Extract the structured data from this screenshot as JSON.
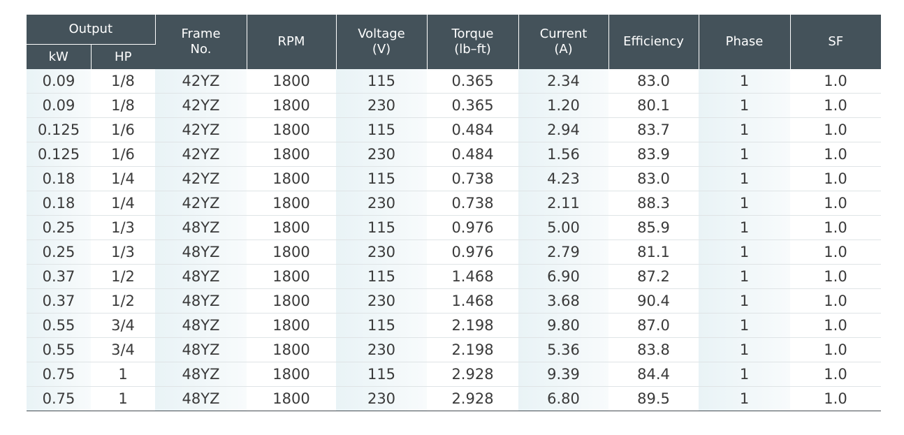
{
  "header": {
    "output": "Output",
    "kw": "kW",
    "hp": "HP",
    "frame": [
      "Frame",
      "No."
    ],
    "rpm": "RPM",
    "voltage": [
      "Voltage",
      "(V)"
    ],
    "torque": [
      "Torque",
      "(lb–ft)"
    ],
    "current": [
      "Current",
      "(A)"
    ],
    "efficiency": "Efficiency",
    "phase": "Phase",
    "sf": "SF"
  },
  "rows": [
    [
      "0.09",
      "1/8",
      "42YZ",
      "1800",
      "115",
      "0.365",
      "2.34",
      "83.0",
      "1",
      "1.0"
    ],
    [
      "0.09",
      "1/8",
      "42YZ",
      "1800",
      "230",
      "0.365",
      "1.20",
      "80.1",
      "1",
      "1.0"
    ],
    [
      "0.125",
      "1/6",
      "42YZ",
      "1800",
      "115",
      "0.484",
      "2.94",
      "83.7",
      "1",
      "1.0"
    ],
    [
      "0.125",
      "1/6",
      "42YZ",
      "1800",
      "230",
      "0.484",
      "1.56",
      "83.9",
      "1",
      "1.0"
    ],
    [
      "0.18",
      "1/4",
      "42YZ",
      "1800",
      "115",
      "0.738",
      "4.23",
      "83.0",
      "1",
      "1.0"
    ],
    [
      "0.18",
      "1/4",
      "42YZ",
      "1800",
      "230",
      "0.738",
      "2.11",
      "88.3",
      "1",
      "1.0"
    ],
    [
      "0.25",
      "1/3",
      "48YZ",
      "1800",
      "115",
      "0.976",
      "5.00",
      "85.9",
      "1",
      "1.0"
    ],
    [
      "0.25",
      "1/3",
      "48YZ",
      "1800",
      "230",
      "0.976",
      "2.79",
      "81.1",
      "1",
      "1.0"
    ],
    [
      "0.37",
      "1/2",
      "48YZ",
      "1800",
      "115",
      "1.468",
      "6.90",
      "87.2",
      "1",
      "1.0"
    ],
    [
      "0.37",
      "1/2",
      "48YZ",
      "1800",
      "230",
      "1.468",
      "3.68",
      "90.4",
      "1",
      "1.0"
    ],
    [
      "0.55",
      "3/4",
      "48YZ",
      "1800",
      "115",
      "2.198",
      "9.80",
      "87.0",
      "1",
      "1.0"
    ],
    [
      "0.55",
      "3/4",
      "48YZ",
      "1800",
      "230",
      "2.198",
      "5.36",
      "83.8",
      "1",
      "1.0"
    ],
    [
      "0.75",
      "1",
      "48YZ",
      "1800",
      "115",
      "2.928",
      "9.39",
      "84.4",
      "1",
      "1.0"
    ],
    [
      "0.75",
      "1",
      "48YZ",
      "1800",
      "230",
      "2.928",
      "6.80",
      "89.5",
      "1",
      "1.0"
    ]
  ],
  "shaded_columns": [
    0,
    2,
    4,
    6,
    8
  ],
  "colors": {
    "header_bg": "#44525a",
    "header_text": "#ffffff",
    "shade_start": "#e9f3f6",
    "body_text": "#3a3a3a"
  }
}
